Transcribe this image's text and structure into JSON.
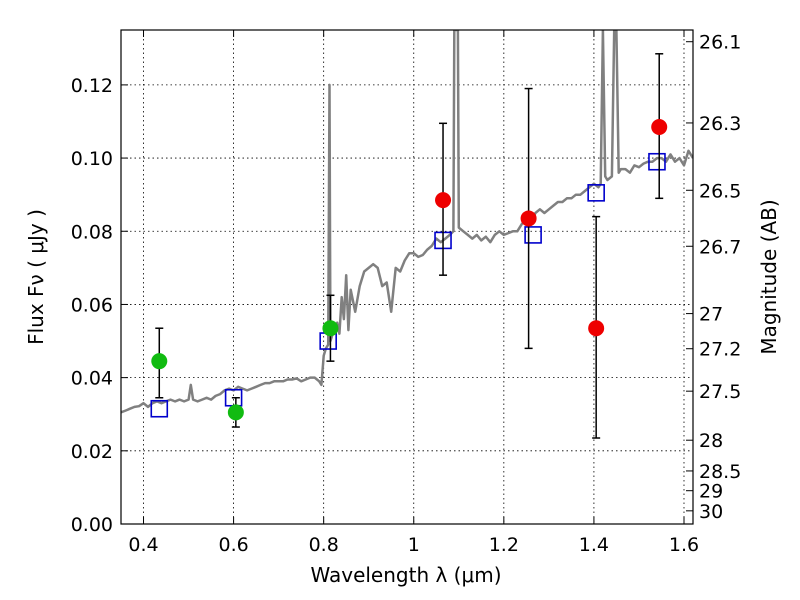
{
  "chart_data": {
    "type": "scatter",
    "title": "",
    "xlabel": "Wavelength  λ (μm)",
    "ylabel": "Flux  Fν  ( μJy )",
    "ylabel_right": "Magnitude (AB)",
    "xlim": [
      0.35,
      1.62
    ],
    "ylim": [
      0.0,
      0.135
    ],
    "grid": true,
    "x_ticks": [
      0.4,
      0.6,
      0.8,
      1.0,
      1.2,
      1.4,
      1.6
    ],
    "x_tick_labels": [
      "0.4",
      "0.6",
      "0.8",
      "1",
      "1.2",
      "1.4",
      "1.6"
    ],
    "y_ticks": [
      0.0,
      0.02,
      0.04,
      0.06,
      0.08,
      0.1,
      0.12
    ],
    "y_tick_labels": [
      "0.00",
      "0.02",
      "0.04",
      "0.06",
      "0.08",
      "0.10",
      "0.12"
    ],
    "right_ticks": [
      {
        "label": "26.1",
        "flux": 0.1318
      },
      {
        "label": "26.3",
        "flux": 0.1096
      },
      {
        "label": "26.5",
        "flux": 0.0912
      },
      {
        "label": "26.7",
        "flux": 0.0759
      },
      {
        "label": "27",
        "flux": 0.0575
      },
      {
        "label": "27.2",
        "flux": 0.0479
      },
      {
        "label": "27.5",
        "flux": 0.0363
      },
      {
        "label": "28",
        "flux": 0.0229
      },
      {
        "label": "28.5",
        "flux": 0.0145
      },
      {
        "label": "29",
        "flux": 0.0091
      },
      {
        "label": "30",
        "flux": 0.0036
      }
    ],
    "colors": {
      "model": "#808080",
      "green": "#11bb11",
      "red": "#ee0000",
      "squares": "#0000cc",
      "errorbar": "#000000"
    },
    "series": [
      {
        "kind": "model_spectrum",
        "points": [
          [
            0.35,
            0.0305
          ],
          [
            0.36,
            0.031
          ],
          [
            0.37,
            0.0315
          ],
          [
            0.38,
            0.032
          ],
          [
            0.39,
            0.0322
          ],
          [
            0.4,
            0.033
          ],
          [
            0.41,
            0.032
          ],
          [
            0.42,
            0.033
          ],
          [
            0.43,
            0.0335
          ],
          [
            0.44,
            0.033
          ],
          [
            0.45,
            0.0335
          ],
          [
            0.46,
            0.034
          ],
          [
            0.47,
            0.0335
          ],
          [
            0.48,
            0.034
          ],
          [
            0.49,
            0.0335
          ],
          [
            0.5,
            0.034
          ],
          [
            0.505,
            0.038
          ],
          [
            0.51,
            0.034
          ],
          [
            0.52,
            0.0335
          ],
          [
            0.53,
            0.034
          ],
          [
            0.54,
            0.0345
          ],
          [
            0.55,
            0.034
          ],
          [
            0.56,
            0.035
          ],
          [
            0.57,
            0.0355
          ],
          [
            0.58,
            0.0365
          ],
          [
            0.59,
            0.037
          ],
          [
            0.6,
            0.0365
          ],
          [
            0.61,
            0.0375
          ],
          [
            0.62,
            0.037
          ],
          [
            0.63,
            0.0365
          ],
          [
            0.64,
            0.037
          ],
          [
            0.65,
            0.0375
          ],
          [
            0.66,
            0.038
          ],
          [
            0.67,
            0.0385
          ],
          [
            0.68,
            0.0385
          ],
          [
            0.69,
            0.039
          ],
          [
            0.7,
            0.039
          ],
          [
            0.71,
            0.039
          ],
          [
            0.72,
            0.0395
          ],
          [
            0.73,
            0.0395
          ],
          [
            0.74,
            0.0398
          ],
          [
            0.75,
            0.039
          ],
          [
            0.76,
            0.0395
          ],
          [
            0.77,
            0.04
          ],
          [
            0.78,
            0.04
          ],
          [
            0.79,
            0.039
          ],
          [
            0.795,
            0.038
          ],
          [
            0.8,
            0.046
          ],
          [
            0.805,
            0.048
          ],
          [
            0.81,
            0.049
          ],
          [
            0.813,
            0.12
          ],
          [
            0.815,
            0.05
          ],
          [
            0.82,
            0.052
          ],
          [
            0.83,
            0.055
          ],
          [
            0.835,
            0.052
          ],
          [
            0.84,
            0.062
          ],
          [
            0.845,
            0.056
          ],
          [
            0.85,
            0.068
          ],
          [
            0.855,
            0.053
          ],
          [
            0.86,
            0.064
          ],
          [
            0.87,
            0.058
          ],
          [
            0.88,
            0.065
          ],
          [
            0.89,
            0.069
          ],
          [
            0.9,
            0.07
          ],
          [
            0.91,
            0.071
          ],
          [
            0.92,
            0.07
          ],
          [
            0.93,
            0.065
          ],
          [
            0.94,
            0.066
          ],
          [
            0.95,
            0.058
          ],
          [
            0.96,
            0.07
          ],
          [
            0.97,
            0.069
          ],
          [
            0.98,
            0.072
          ],
          [
            0.99,
            0.074
          ],
          [
            1.0,
            0.074
          ],
          [
            1.01,
            0.073
          ],
          [
            1.02,
            0.0735
          ],
          [
            1.03,
            0.075
          ],
          [
            1.04,
            0.076
          ],
          [
            1.05,
            0.078
          ],
          [
            1.06,
            0.077
          ],
          [
            1.07,
            0.078
          ],
          [
            1.08,
            0.079
          ],
          [
            1.088,
            0.08
          ],
          [
            1.09,
            0.135
          ],
          [
            1.098,
            0.135
          ],
          [
            1.1,
            0.081
          ],
          [
            1.11,
            0.08
          ],
          [
            1.12,
            0.079
          ],
          [
            1.13,
            0.078
          ],
          [
            1.14,
            0.079
          ],
          [
            1.15,
            0.0775
          ],
          [
            1.16,
            0.0785
          ],
          [
            1.17,
            0.077
          ],
          [
            1.18,
            0.079
          ],
          [
            1.19,
            0.08
          ],
          [
            1.2,
            0.079
          ],
          [
            1.21,
            0.0795
          ],
          [
            1.22,
            0.08
          ],
          [
            1.23,
            0.08
          ],
          [
            1.24,
            0.082
          ],
          [
            1.25,
            0.083
          ],
          [
            1.26,
            0.082
          ],
          [
            1.27,
            0.085
          ],
          [
            1.28,
            0.086
          ],
          [
            1.29,
            0.085
          ],
          [
            1.3,
            0.086
          ],
          [
            1.31,
            0.087
          ],
          [
            1.32,
            0.088
          ],
          [
            1.33,
            0.088
          ],
          [
            1.34,
            0.089
          ],
          [
            1.35,
            0.089
          ],
          [
            1.36,
            0.09
          ],
          [
            1.37,
            0.09
          ],
          [
            1.38,
            0.091
          ],
          [
            1.39,
            0.092
          ],
          [
            1.4,
            0.093
          ],
          [
            1.41,
            0.092
          ],
          [
            1.415,
            0.093
          ],
          [
            1.42,
            0.135
          ],
          [
            1.425,
            0.095
          ],
          [
            1.43,
            0.094
          ],
          [
            1.44,
            0.095
          ],
          [
            1.445,
            0.135
          ],
          [
            1.45,
            0.135
          ],
          [
            1.455,
            0.096
          ],
          [
            1.46,
            0.097
          ],
          [
            1.47,
            0.097
          ],
          [
            1.48,
            0.096
          ],
          [
            1.49,
            0.098
          ],
          [
            1.5,
            0.0975
          ],
          [
            1.51,
            0.0985
          ],
          [
            1.52,
            0.099
          ],
          [
            1.53,
            0.099
          ],
          [
            1.54,
            0.1
          ],
          [
            1.55,
            0.1
          ],
          [
            1.56,
            0.099
          ],
          [
            1.57,
            0.101
          ],
          [
            1.58,
            0.099
          ],
          [
            1.59,
            0.1
          ],
          [
            1.6,
            0.098
          ],
          [
            1.61,
            0.102
          ],
          [
            1.62,
            0.1
          ]
        ]
      },
      {
        "kind": "observed_green",
        "points": [
          {
            "x": 0.435,
            "y": 0.0445,
            "yerr_low": 0.0345,
            "yerr_high": 0.0535
          },
          {
            "x": 0.605,
            "y": 0.0305,
            "yerr_low": 0.0265,
            "yerr_high": 0.0345
          },
          {
            "x": 0.815,
            "y": 0.0535,
            "yerr_low": 0.0445,
            "yerr_high": 0.0625
          }
        ]
      },
      {
        "kind": "observed_red",
        "points": [
          {
            "x": 1.065,
            "y": 0.0885,
            "yerr_low": 0.068,
            "yerr_high": 0.1095
          },
          {
            "x": 1.255,
            "y": 0.0835,
            "yerr_low": 0.048,
            "yerr_high": 0.119
          },
          {
            "x": 1.405,
            "y": 0.0535,
            "yerr_low": 0.0235,
            "yerr_high": 0.084
          },
          {
            "x": 1.545,
            "y": 0.1085,
            "yerr_low": 0.089,
            "yerr_high": 0.1285
          }
        ]
      },
      {
        "kind": "model_photometry",
        "points": [
          {
            "x": 0.435,
            "y": 0.0315
          },
          {
            "x": 0.6,
            "y": 0.0345
          },
          {
            "x": 0.81,
            "y": 0.05
          },
          {
            "x": 1.065,
            "y": 0.0775
          },
          {
            "x": 1.265,
            "y": 0.079
          },
          {
            "x": 1.405,
            "y": 0.0905
          },
          {
            "x": 1.54,
            "y": 0.099
          }
        ]
      }
    ]
  }
}
